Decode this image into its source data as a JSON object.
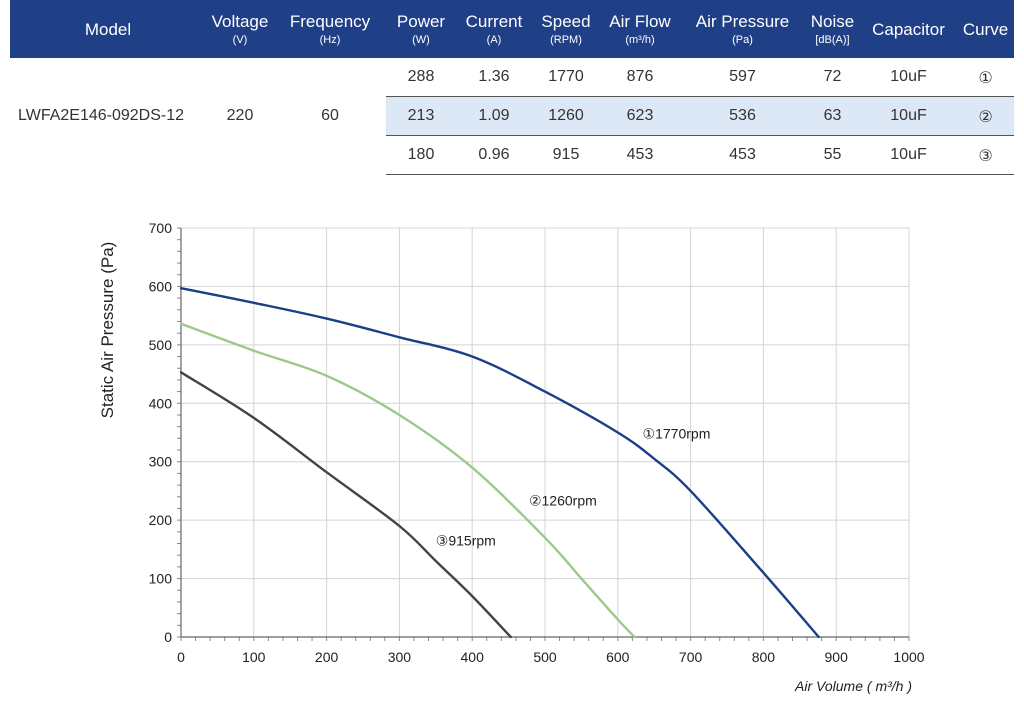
{
  "table": {
    "headers": [
      {
        "main": "Model",
        "unit": ""
      },
      {
        "main": "Voltage",
        "unit": "(V)"
      },
      {
        "main": "Frequency",
        "unit": "(Hz)"
      },
      {
        "main": "Power",
        "unit": "(W)"
      },
      {
        "main": "Current",
        "unit": "(A)"
      },
      {
        "main": "Speed",
        "unit": "(RPM)"
      },
      {
        "main": "Air Flow",
        "unit": "(m³/h)"
      },
      {
        "main": "Air Pressure",
        "unit": "(Pa)"
      },
      {
        "main": "Noise",
        "unit": "[dB(A)]"
      },
      {
        "main": "Capacitor",
        "unit": ""
      },
      {
        "main": "Curve",
        "unit": ""
      }
    ],
    "model": "LWFA2E146-092DS-12",
    "voltage": "220",
    "frequency": "60",
    "rows": [
      {
        "power": "288",
        "current": "1.36",
        "speed": "1770",
        "airflow": "876",
        "pressure": "597",
        "noise": "72",
        "capacitor": "10uF",
        "curve": "①"
      },
      {
        "power": "213",
        "current": "1.09",
        "speed": "1260",
        "airflow": "623",
        "pressure": "536",
        "noise": "63",
        "capacitor": "10uF",
        "curve": "②"
      },
      {
        "power": "180",
        "current": "0.96",
        "speed": "915",
        "airflow": "453",
        "pressure": "453",
        "noise": "55",
        "capacitor": "10uF",
        "curve": "③"
      }
    ]
  },
  "chart_data": {
    "type": "line",
    "title": "",
    "xlabel": "Air Volume ( m³/h )",
    "ylabel": "Static Air Pressure  (Pa)",
    "xlim": [
      0,
      1000
    ],
    "ylim": [
      0,
      700
    ],
    "xticks": [
      0,
      100,
      200,
      300,
      400,
      500,
      600,
      700,
      800,
      900,
      1000
    ],
    "yticks": [
      0,
      100,
      200,
      300,
      400,
      500,
      600,
      700
    ],
    "grid": true,
    "series": [
      {
        "name": "①1770rpm",
        "color": "#1b3f86",
        "x": [
          0,
          100,
          200,
          300,
          400,
          500,
          600,
          650,
          700,
          800,
          876
        ],
        "y": [
          597,
          572,
          545,
          513,
          480,
          420,
          350,
          305,
          250,
          110,
          0
        ]
      },
      {
        "name": "②1260rpm",
        "color": "#9cc98a",
        "x": [
          0,
          100,
          200,
          300,
          400,
          500,
          550,
          600,
          623
        ],
        "y": [
          536,
          490,
          447,
          380,
          290,
          170,
          100,
          30,
          0
        ]
      },
      {
        "name": "③915rpm",
        "color": "#444444",
        "x": [
          0,
          100,
          200,
          300,
          350,
          400,
          453
        ],
        "y": [
          453,
          375,
          282,
          190,
          130,
          70,
          0
        ]
      }
    ]
  }
}
